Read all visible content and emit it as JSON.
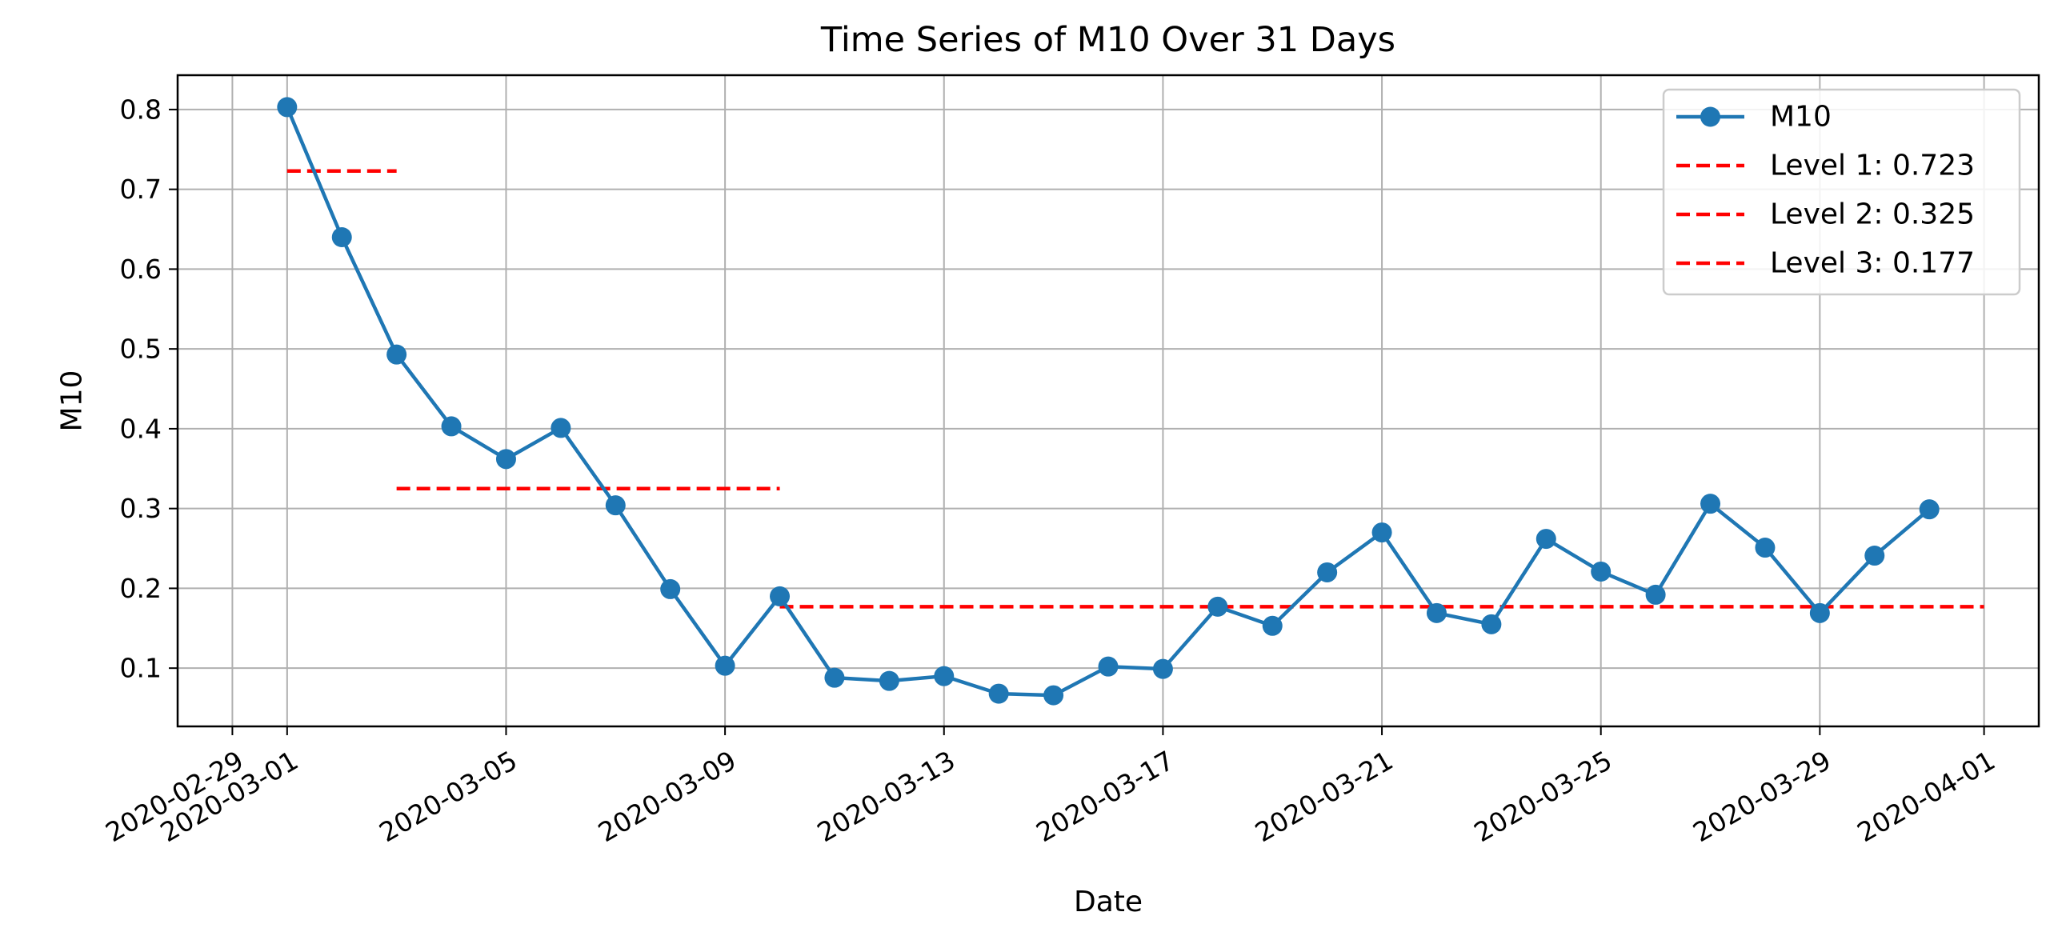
{
  "chart_data": {
    "type": "line",
    "title": "Time Series of M10 Over 31 Days",
    "xlabel": "Date",
    "ylabel": "M10",
    "grid": true,
    "legend_position": "top-right",
    "xlim": [
      "2020-02-28",
      "2020-04-02"
    ],
    "ylim": [
      0.027,
      0.843
    ],
    "x_ticks": [
      "2020-02-29",
      "2020-03-01",
      "2020-03-05",
      "2020-03-09",
      "2020-03-13",
      "2020-03-17",
      "2020-03-21",
      "2020-03-25",
      "2020-03-29",
      "2020-04-01"
    ],
    "y_ticks": [
      0.1,
      0.2,
      0.3,
      0.4,
      0.5,
      0.6,
      0.7,
      0.8
    ],
    "y_tick_labels": [
      "0.1",
      "0.2",
      "0.3",
      "0.4",
      "0.5",
      "0.6",
      "0.7",
      "0.8"
    ],
    "series": [
      {
        "name": "M10",
        "color": "#1f77b4",
        "style": "line-with-markers",
        "x": [
          "2020-03-01",
          "2020-03-02",
          "2020-03-03",
          "2020-03-04",
          "2020-03-05",
          "2020-03-06",
          "2020-03-07",
          "2020-03-08",
          "2020-03-09",
          "2020-03-10",
          "2020-03-11",
          "2020-03-12",
          "2020-03-13",
          "2020-03-14",
          "2020-03-15",
          "2020-03-16",
          "2020-03-17",
          "2020-03-18",
          "2020-03-19",
          "2020-03-20",
          "2020-03-21",
          "2020-03-22",
          "2020-03-23",
          "2020-03-24",
          "2020-03-25",
          "2020-03-26",
          "2020-03-27",
          "2020-03-28",
          "2020-03-29",
          "2020-03-30",
          "2020-03-31"
        ],
        "values": [
          0.803,
          0.64,
          0.493,
          0.403,
          0.362,
          0.401,
          0.304,
          0.199,
          0.103,
          0.19,
          0.088,
          0.084,
          0.09,
          0.068,
          0.066,
          0.102,
          0.099,
          0.177,
          0.153,
          0.22,
          0.27,
          0.169,
          0.155,
          0.262,
          0.221,
          0.192,
          0.306,
          0.251,
          0.169,
          0.241,
          0.299
        ]
      }
    ],
    "levels": [
      {
        "name": "Level 1: 0.723",
        "value": 0.723,
        "x_start": "2020-03-01",
        "x_end": "2020-03-03",
        "color": "#ff0000",
        "style": "dashed"
      },
      {
        "name": "Level 2: 0.325",
        "value": 0.325,
        "x_start": "2020-03-03",
        "x_end": "2020-03-10",
        "color": "#ff0000",
        "style": "dashed"
      },
      {
        "name": "Level 3: 0.177",
        "value": 0.177,
        "x_start": "2020-03-10",
        "x_end": "2020-04-01",
        "color": "#ff0000",
        "style": "dashed"
      }
    ],
    "legend": [
      "M10",
      "Level 1: 0.723",
      "Level 2: 0.325",
      "Level 3: 0.177"
    ]
  }
}
